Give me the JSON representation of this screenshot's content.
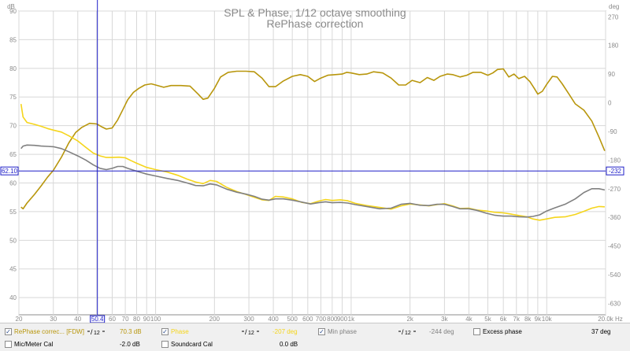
{
  "title": "SPL & Phase, 1/12 octave smoothing",
  "subtitle": "RePhase correction",
  "axes": {
    "left_unit": "dB",
    "right_unit": "deg",
    "x_unit": "Hz",
    "left_ticks": [
      "90",
      "85",
      "80",
      "75",
      "70",
      "65",
      "60",
      "55",
      "50",
      "45",
      "40"
    ],
    "right_ticks": [
      "270",
      "180",
      "90",
      "0",
      "-90",
      "-180",
      "-270",
      "-360",
      "-450",
      "-540",
      "-630"
    ],
    "x_ticks": [
      {
        "f": 20,
        "label": "20"
      },
      {
        "f": 30,
        "label": "30"
      },
      {
        "f": 40,
        "label": "40"
      },
      {
        "f": 60,
        "label": "60"
      },
      {
        "f": 70,
        "label": "70"
      },
      {
        "f": 80,
        "label": "80"
      },
      {
        "f": 90,
        "label": "90"
      },
      {
        "f": 100,
        "label": "100"
      },
      {
        "f": 200,
        "label": "200"
      },
      {
        "f": 300,
        "label": "300"
      },
      {
        "f": 400,
        "label": "400"
      },
      {
        "f": 500,
        "label": "500"
      },
      {
        "f": 600,
        "label": "600"
      },
      {
        "f": 700,
        "label": "700"
      },
      {
        "f": 800,
        "label": "800"
      },
      {
        "f": 900,
        "label": "900"
      },
      {
        "f": 1000,
        "label": "1k"
      },
      {
        "f": 2000,
        "label": "2k"
      },
      {
        "f": 3000,
        "label": "3k"
      },
      {
        "f": 4000,
        "label": "4k"
      },
      {
        "f": 5000,
        "label": "5k"
      },
      {
        "f": 6000,
        "label": "6k"
      },
      {
        "f": 7000,
        "label": "7k"
      },
      {
        "f": 8000,
        "label": "8k"
      },
      {
        "f": 9000,
        "label": "9k"
      },
      {
        "f": 10000,
        "label": "10k"
      },
      {
        "f": 20000,
        "label": "20.0k"
      }
    ]
  },
  "cursor": {
    "x_label": "50.4",
    "x_value": 50.4,
    "y_left_label": "62.10",
    "y_value": 62.1,
    "y_right_label": "-232"
  },
  "chart_data": {
    "type": "line",
    "x_scale": "log",
    "xlim": [
      20,
      20000
    ],
    "ylim_left": [
      37,
      90
    ],
    "ylim_right": [
      -666,
      288
    ],
    "grid": true,
    "series": [
      {
        "name": "RePhase correc... [FDW]",
        "axis": "left",
        "color": "#b8960c",
        "points": [
          [
            20.5,
            55.8
          ],
          [
            21,
            55.5
          ],
          [
            22,
            56.5
          ],
          [
            24,
            58
          ],
          [
            26,
            59.5
          ],
          [
            28,
            61
          ],
          [
            30,
            62.2
          ],
          [
            33,
            64.5
          ],
          [
            36,
            67
          ],
          [
            39,
            68.8
          ],
          [
            42,
            69.7
          ],
          [
            46,
            70.4
          ],
          [
            50,
            70.3
          ],
          [
            53,
            69.8
          ],
          [
            56,
            69.4
          ],
          [
            60,
            69.6
          ],
          [
            64,
            71
          ],
          [
            68,
            72.8
          ],
          [
            72,
            74.5
          ],
          [
            77,
            75.8
          ],
          [
            82,
            76.5
          ],
          [
            88,
            77.1
          ],
          [
            95,
            77.3
          ],
          [
            100,
            77.1
          ],
          [
            110,
            76.7
          ],
          [
            120,
            77
          ],
          [
            135,
            77
          ],
          [
            150,
            76.9
          ],
          [
            165,
            75.5
          ],
          [
            175,
            74.6
          ],
          [
            185,
            74.8
          ],
          [
            200,
            76.5
          ],
          [
            215,
            78.5
          ],
          [
            235,
            79.3
          ],
          [
            260,
            79.5
          ],
          [
            290,
            79.5
          ],
          [
            320,
            79.4
          ],
          [
            350,
            78.3
          ],
          [
            380,
            76.8
          ],
          [
            410,
            76.8
          ],
          [
            450,
            77.8
          ],
          [
            500,
            78.6
          ],
          [
            550,
            78.9
          ],
          [
            600,
            78.6
          ],
          [
            650,
            77.7
          ],
          [
            700,
            78.3
          ],
          [
            760,
            78.8
          ],
          [
            830,
            78.9
          ],
          [
            900,
            79
          ],
          [
            950,
            79.3
          ],
          [
            1000,
            79.2
          ],
          [
            1100,
            78.9
          ],
          [
            1200,
            79
          ],
          [
            1300,
            79.4
          ],
          [
            1450,
            79.2
          ],
          [
            1600,
            78.3
          ],
          [
            1750,
            77.1
          ],
          [
            1900,
            77.1
          ],
          [
            2050,
            77.9
          ],
          [
            2250,
            77.5
          ],
          [
            2450,
            78.4
          ],
          [
            2650,
            77.9
          ],
          [
            2850,
            78.6
          ],
          [
            3100,
            79
          ],
          [
            3300,
            78.9
          ],
          [
            3600,
            78.5
          ],
          [
            3900,
            78.8
          ],
          [
            4200,
            79.3
          ],
          [
            4600,
            79.3
          ],
          [
            5000,
            78.8
          ],
          [
            5300,
            79.2
          ],
          [
            5600,
            79.8
          ],
          [
            6000,
            79.9
          ],
          [
            6400,
            78.5
          ],
          [
            6800,
            79
          ],
          [
            7200,
            78.2
          ],
          [
            7700,
            78.6
          ],
          [
            8200,
            77.7
          ],
          [
            8600,
            76.6
          ],
          [
            9000,
            75.5
          ],
          [
            9500,
            76
          ],
          [
            10000,
            77.2
          ],
          [
            10700,
            78.6
          ],
          [
            11300,
            78.5
          ],
          [
            12000,
            77.3
          ],
          [
            13000,
            75.5
          ],
          [
            14000,
            73.8
          ],
          [
            15500,
            72.7
          ],
          [
            17000,
            70.8
          ],
          [
            18500,
            68
          ],
          [
            19800,
            65.6
          ]
        ]
      },
      {
        "name": "Phase",
        "axis": "right",
        "color": "#f5d51c",
        "points": [
          [
            20.5,
            -4
          ],
          [
            21,
            -45
          ],
          [
            22,
            -62
          ],
          [
            24,
            -68
          ],
          [
            26,
            -74
          ],
          [
            28,
            -81
          ],
          [
            30,
            -86
          ],
          [
            33,
            -92
          ],
          [
            36,
            -104
          ],
          [
            40,
            -120
          ],
          [
            44,
            -140
          ],
          [
            48,
            -158
          ],
          [
            52,
            -167
          ],
          [
            56,
            -172
          ],
          [
            60,
            -172
          ],
          [
            65,
            -171
          ],
          [
            70,
            -173
          ],
          [
            75,
            -182
          ],
          [
            80,
            -190
          ],
          [
            90,
            -203
          ],
          [
            100,
            -210
          ],
          [
            115,
            -218
          ],
          [
            130,
            -228
          ],
          [
            145,
            -240
          ],
          [
            160,
            -249
          ],
          [
            175,
            -254
          ],
          [
            190,
            -244
          ],
          [
            205,
            -247
          ],
          [
            230,
            -265
          ],
          [
            260,
            -279
          ],
          [
            290,
            -288
          ],
          [
            320,
            -297
          ],
          [
            350,
            -305
          ],
          [
            380,
            -307
          ],
          [
            410,
            -294
          ],
          [
            450,
            -296
          ],
          [
            500,
            -302
          ],
          [
            560,
            -313
          ],
          [
            620,
            -317
          ],
          [
            680,
            -309
          ],
          [
            740,
            -304
          ],
          [
            800,
            -307
          ],
          [
            880,
            -305
          ],
          [
            960,
            -308
          ],
          [
            1050,
            -316
          ],
          [
            1200,
            -323
          ],
          [
            1400,
            -329
          ],
          [
            1600,
            -334
          ],
          [
            1800,
            -324
          ],
          [
            2000,
            -318
          ],
          [
            2250,
            -321
          ],
          [
            2500,
            -324
          ],
          [
            2750,
            -320
          ],
          [
            3000,
            -317
          ],
          [
            3300,
            -324
          ],
          [
            3600,
            -332
          ],
          [
            4000,
            -331
          ],
          [
            4400,
            -337
          ],
          [
            4900,
            -340
          ],
          [
            5400,
            -344
          ],
          [
            6000,
            -346
          ],
          [
            6600,
            -350
          ],
          [
            7200,
            -354
          ],
          [
            7900,
            -358
          ],
          [
            8500,
            -365
          ],
          [
            9200,
            -369
          ],
          [
            10000,
            -365
          ],
          [
            11000,
            -360
          ],
          [
            12500,
            -358
          ],
          [
            14000,
            -351
          ],
          [
            15500,
            -341
          ],
          [
            17000,
            -331
          ],
          [
            18500,
            -326
          ],
          [
            19800,
            -327
          ]
        ]
      },
      {
        "name": "Min phase",
        "axis": "right",
        "color": "#808080",
        "points": [
          [
            20.5,
            -144
          ],
          [
            21,
            -136
          ],
          [
            22,
            -133
          ],
          [
            24,
            -134
          ],
          [
            26,
            -136
          ],
          [
            28,
            -137
          ],
          [
            30,
            -138
          ],
          [
            33,
            -144
          ],
          [
            36,
            -154
          ],
          [
            40,
            -167
          ],
          [
            44,
            -180
          ],
          [
            48,
            -195
          ],
          [
            52,
            -206
          ],
          [
            56,
            -210
          ],
          [
            60,
            -206
          ],
          [
            64,
            -200
          ],
          [
            68,
            -200
          ],
          [
            72,
            -206
          ],
          [
            80,
            -215
          ],
          [
            90,
            -224
          ],
          [
            100,
            -230
          ],
          [
            115,
            -238
          ],
          [
            130,
            -244
          ],
          [
            145,
            -252
          ],
          [
            160,
            -260
          ],
          [
            175,
            -261
          ],
          [
            190,
            -255
          ],
          [
            205,
            -258
          ],
          [
            230,
            -271
          ],
          [
            260,
            -281
          ],
          [
            290,
            -287
          ],
          [
            320,
            -294
          ],
          [
            350,
            -303
          ],
          [
            380,
            -306
          ],
          [
            410,
            -302
          ],
          [
            450,
            -302
          ],
          [
            500,
            -306
          ],
          [
            560,
            -312
          ],
          [
            620,
            -318
          ],
          [
            680,
            -314
          ],
          [
            740,
            -311
          ],
          [
            800,
            -314
          ],
          [
            880,
            -313
          ],
          [
            960,
            -315
          ],
          [
            1050,
            -320
          ],
          [
            1200,
            -326
          ],
          [
            1400,
            -333
          ],
          [
            1600,
            -331
          ],
          [
            1800,
            -319
          ],
          [
            2000,
            -316
          ],
          [
            2250,
            -322
          ],
          [
            2500,
            -323
          ],
          [
            2750,
            -319
          ],
          [
            3000,
            -319
          ],
          [
            3300,
            -326
          ],
          [
            3600,
            -333
          ],
          [
            4000,
            -333
          ],
          [
            4400,
            -338
          ],
          [
            4900,
            -347
          ],
          [
            5400,
            -353
          ],
          [
            6000,
            -356
          ],
          [
            6600,
            -356
          ],
          [
            7200,
            -358
          ],
          [
            7900,
            -359
          ],
          [
            8500,
            -357
          ],
          [
            9200,
            -352
          ],
          [
            10000,
            -340
          ],
          [
            11000,
            -330
          ],
          [
            12500,
            -318
          ],
          [
            14000,
            -302
          ],
          [
            15500,
            -282
          ],
          [
            17000,
            -270
          ],
          [
            18500,
            -270
          ],
          [
            19800,
            -274
          ]
        ]
      }
    ]
  },
  "legend": {
    "rows": [
      [
        {
          "kind": "check",
          "checked": true,
          "label": "RePhase correc... [FDW]",
          "color": "#b8960c",
          "smooth": "1/12",
          "value": "70.3 dB"
        },
        {
          "kind": "check",
          "checked": true,
          "label": "Phase",
          "color": "#f5d51c",
          "smooth": "1/12",
          "value": "-207 deg"
        },
        {
          "kind": "check",
          "checked": true,
          "label": "Min phase",
          "color": "#808080",
          "smooth": "1/12",
          "value": "-244 deg"
        },
        {
          "kind": "check",
          "checked": false,
          "label": "Excess phase",
          "color": "#000000",
          "value": "37 deg"
        }
      ],
      [
        {
          "kind": "check",
          "checked": false,
          "label": "Mic/Meter Cal",
          "color": "#000000",
          "value": "-2.0 dB"
        },
        {
          "kind": "check",
          "checked": false,
          "label": "Soundcard Cal",
          "color": "#000000",
          "value": "0.0 dB"
        }
      ]
    ]
  },
  "colors": {
    "grid": "#d8d8d8",
    "frame": "#8c8c8c",
    "cursor": "#1e1ec8",
    "label": "#8a8a8a",
    "legend_bg": "#f0f0f0"
  }
}
